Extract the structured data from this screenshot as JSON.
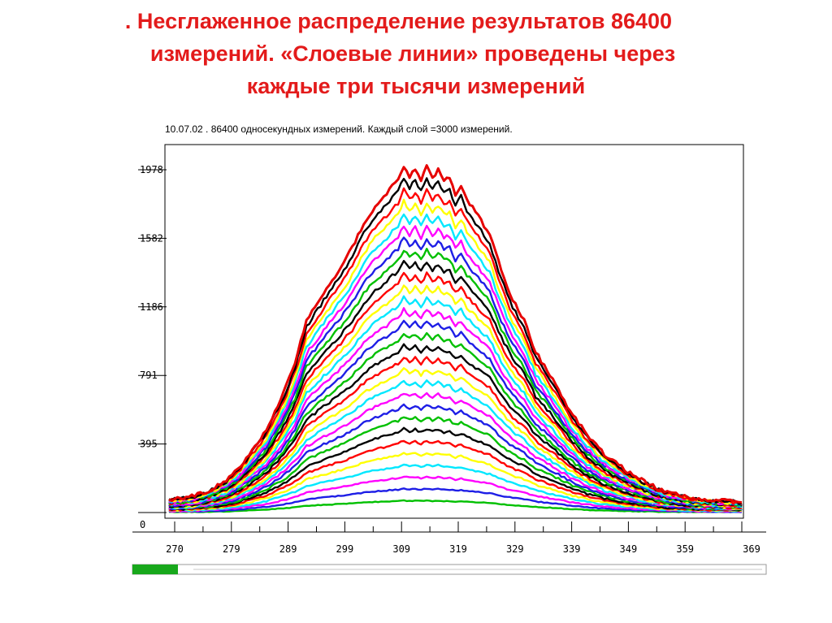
{
  "slide": {
    "title_lines": [
      ". Несглаженное распределение результатов 86400",
      "измерений. «Слоевые  линии» проведены через",
      "каждые три тысячи  измерений"
    ]
  },
  "chart_data": {
    "type": "line",
    "title": "10.07.02 . 86400 односекундных измерений. Каждый слой =3000 измерений.",
    "xlabel": "",
    "ylabel": "",
    "x_ticks": [
      "270",
      "279",
      "289",
      "299",
      "309",
      "319",
      "329",
      "339",
      "349",
      "359",
      "369"
    ],
    "y_ticks": [
      "0",
      "395",
      "791",
      "1186",
      "1582",
      "1978"
    ],
    "xlim": [
      270,
      369
    ],
    "ylim": [
      0,
      1978
    ],
    "grid": false,
    "layers": 29,
    "layer_size": 3000,
    "layer_colors": [
      "#00c000",
      "#1e1ee6",
      "#ff00ff",
      "#00e8ff",
      "#ffff00",
      "#ff0000",
      "#000000"
    ],
    "top_line_color": "#e60000",
    "envelope": {
      "x": [
        270,
        272,
        274,
        276,
        279,
        281,
        283,
        286,
        289,
        291,
        293,
        296,
        299,
        301,
        303,
        305,
        307,
        308,
        309,
        310,
        311,
        312,
        313,
        314,
        315,
        316,
        317,
        318,
        319,
        320,
        321,
        323,
        325,
        327,
        329,
        331,
        333,
        336,
        339,
        342,
        345,
        349,
        352,
        355,
        359,
        362,
        365,
        369
      ],
      "y": [
        30,
        38,
        55,
        80,
        140,
        200,
        290,
        430,
        640,
        820,
        1060,
        1220,
        1370,
        1480,
        1620,
        1720,
        1790,
        1840,
        1870,
        1955,
        1890,
        1940,
        1870,
        1950,
        1880,
        1930,
        1870,
        1880,
        1790,
        1840,
        1760,
        1660,
        1560,
        1350,
        1180,
        1060,
        880,
        720,
        540,
        400,
        290,
        190,
        130,
        80,
        45,
        30,
        20,
        15
      ]
    }
  }
}
